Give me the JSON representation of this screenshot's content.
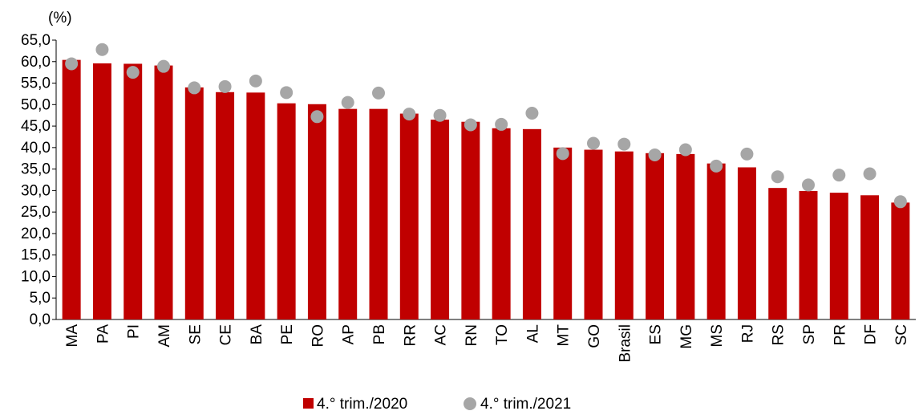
{
  "chart_data": {
    "type": "bar",
    "unit_label": "(%)",
    "categories": [
      "MA",
      "PA",
      "PI",
      "AM",
      "SE",
      "CE",
      "BA",
      "PE",
      "RO",
      "AP",
      "PB",
      "RR",
      "AC",
      "RN",
      "TO",
      "AL",
      "MT",
      "GO",
      "Brasil",
      "ES",
      "MG",
      "MS",
      "RJ",
      "RS",
      "SP",
      "PR",
      "DF",
      "SC"
    ],
    "series": [
      {
        "name": "4.° trim./2020",
        "type": "bar",
        "color": "#c00000",
        "values": [
          60.4,
          59.6,
          59.5,
          59.1,
          54.0,
          52.9,
          52.8,
          50.3,
          50.1,
          49.0,
          49.0,
          47.9,
          46.5,
          46.0,
          44.5,
          44.3,
          40.0,
          39.5,
          39.1,
          38.7,
          38.5,
          36.3,
          35.4,
          30.6,
          29.9,
          29.5,
          28.9,
          27.2
        ]
      },
      {
        "name": "4.° trim./2021",
        "type": "scatter",
        "color": "#a6a6a6",
        "values": [
          59.5,
          62.8,
          57.5,
          58.9,
          53.9,
          54.2,
          55.5,
          52.8,
          47.2,
          50.5,
          52.7,
          47.8,
          47.5,
          45.3,
          45.4,
          48.0,
          38.6,
          41.0,
          40.8,
          38.3,
          39.5,
          35.7,
          38.5,
          33.2,
          31.3,
          33.6,
          33.9,
          27.4
        ]
      }
    ],
    "yticks": [
      "0,0",
      "5,0",
      "10,0",
      "15,0",
      "20,0",
      "25,0",
      "30,0",
      "35,0",
      "40,0",
      "45,0",
      "50,0",
      "55,0",
      "60,0",
      "65,0"
    ],
    "ylim": [
      0,
      65
    ],
    "grid": false,
    "legend_position": "bottom-center"
  }
}
